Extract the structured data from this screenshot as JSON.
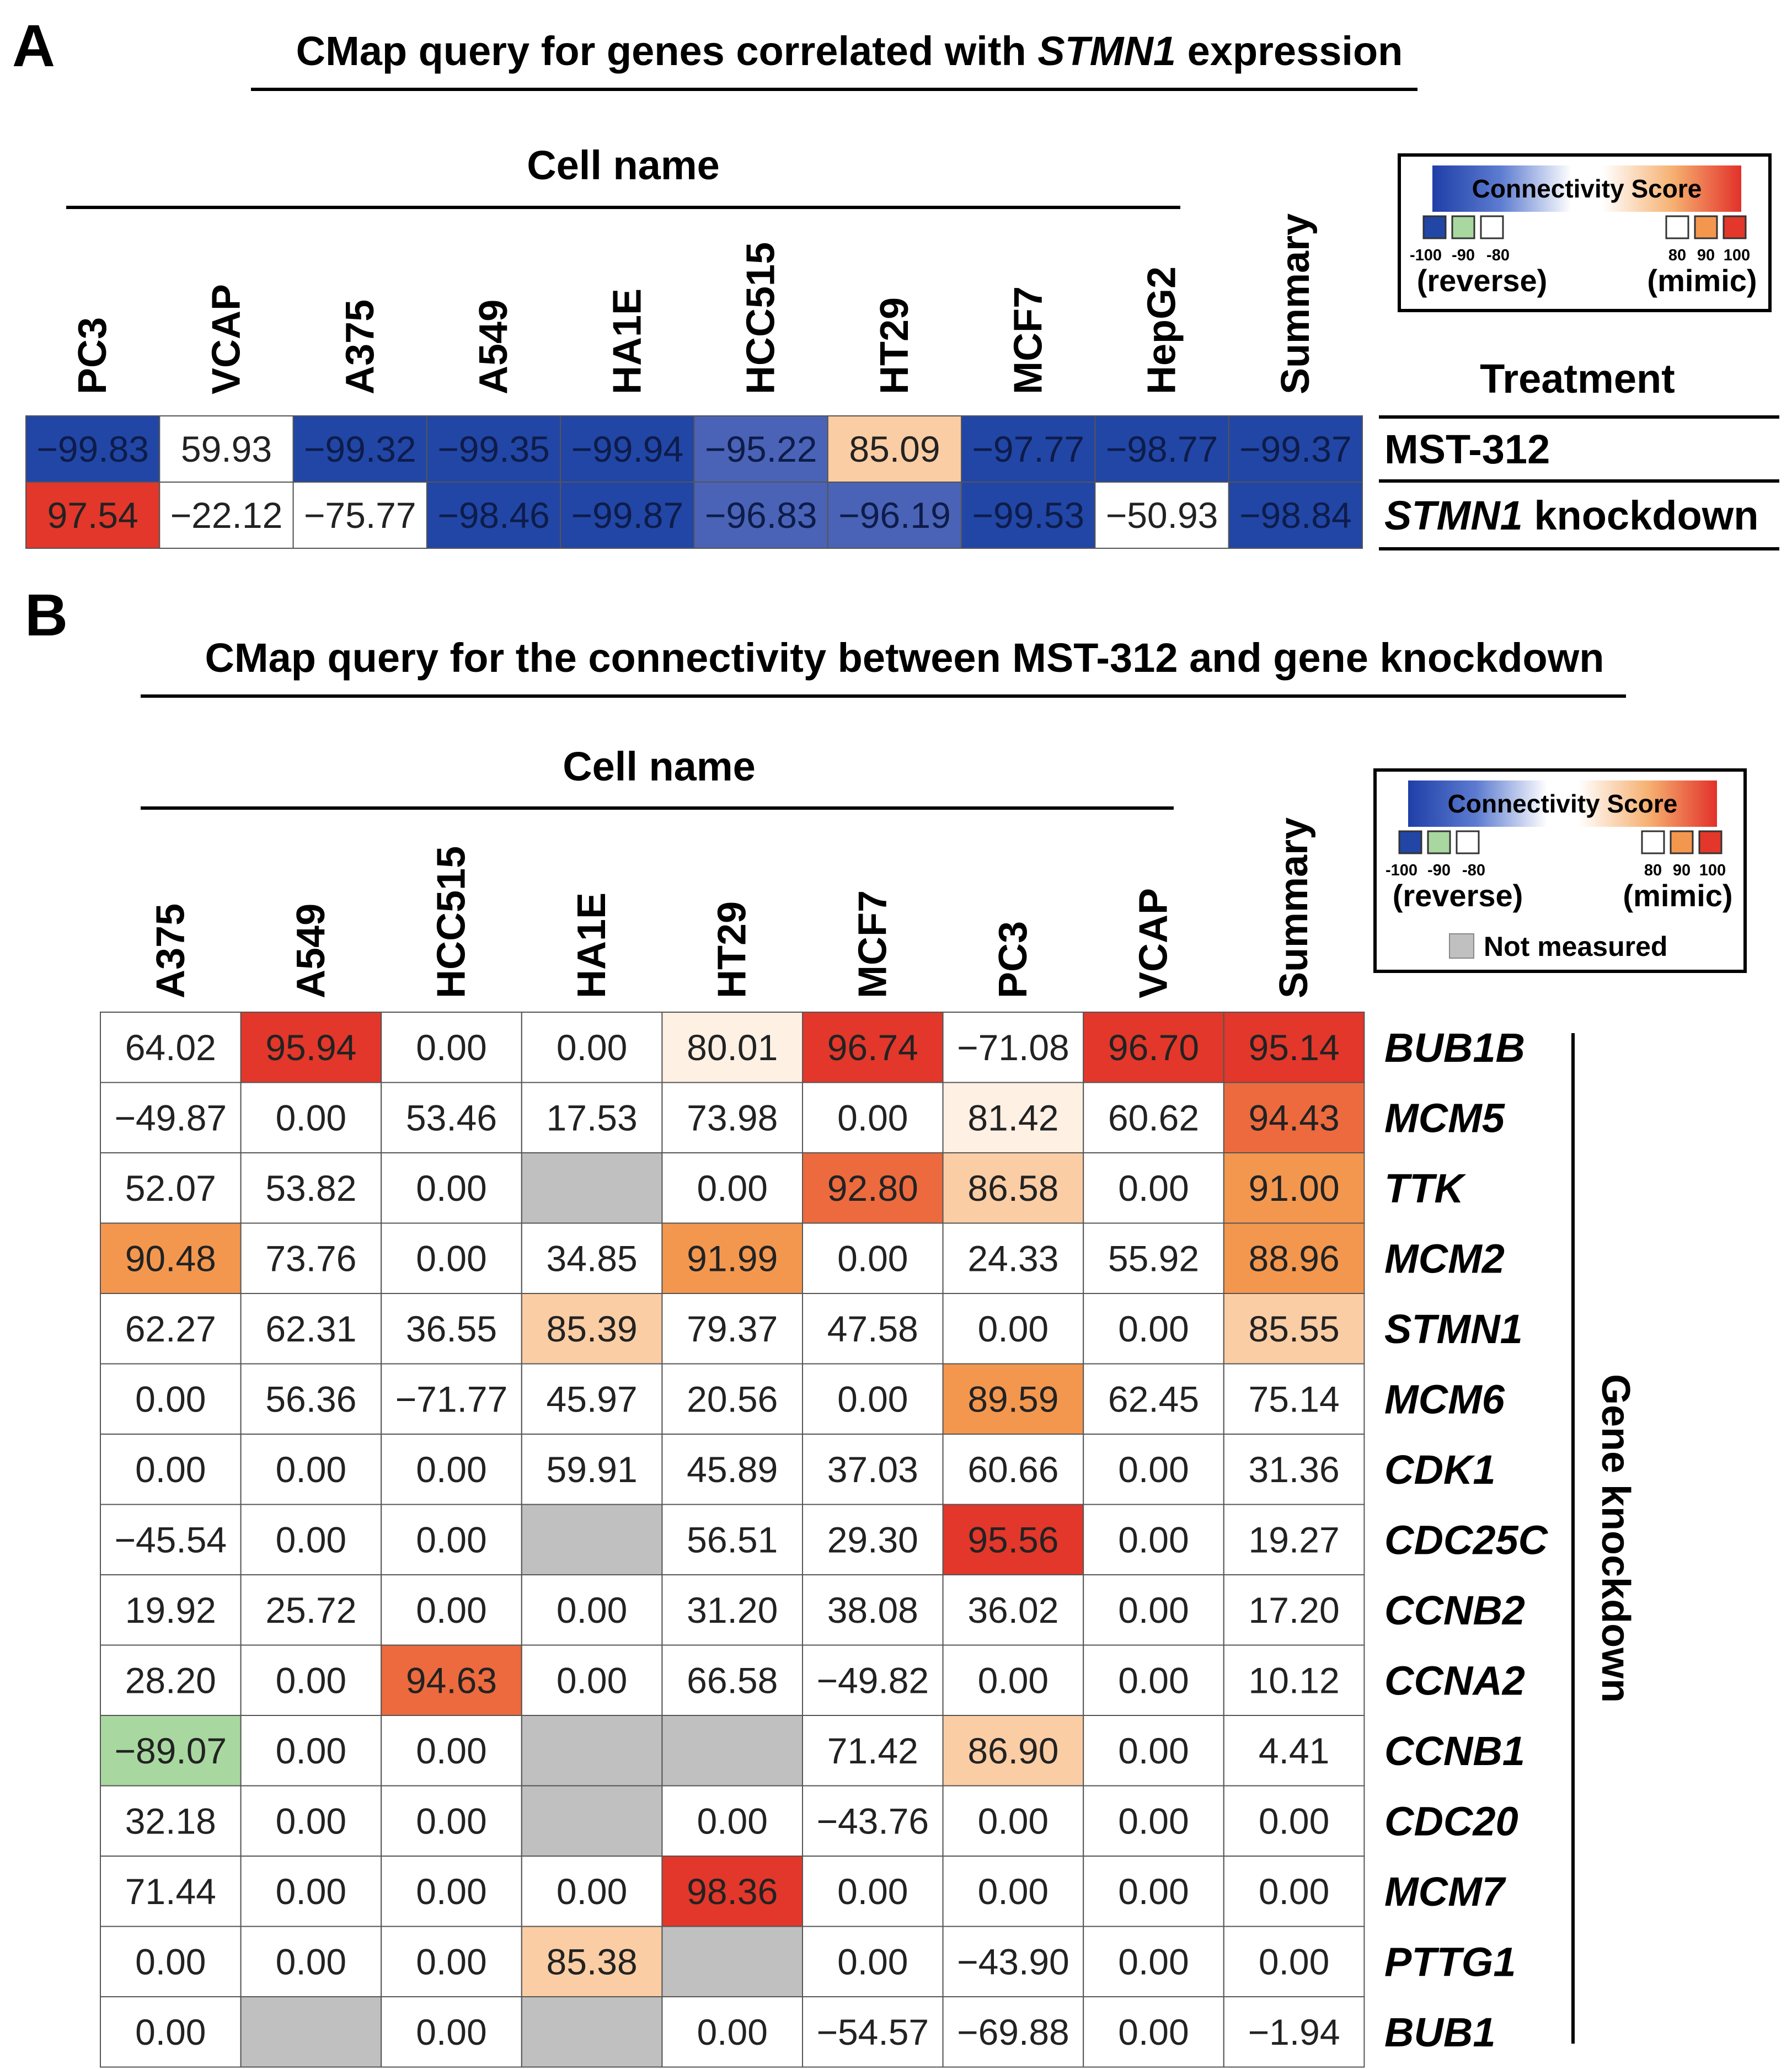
{
  "colors": {
    "strong_blue": "#2246a6",
    "mid_blue": "#4a63b6",
    "green": "#a8d8a0",
    "light_peach": "#fff0e4",
    "peach": "#fbcda4",
    "orange": "#f3974f",
    "dark_orange": "#ec6a3e",
    "red": "#e2372a",
    "grey": "#c0c0c0",
    "white": "#ffffff"
  },
  "chart_data": [
    {
      "type": "heatmap",
      "panel": "A",
      "title_parts": [
        "CMap query for genes correlated with ",
        "STMN1",
        " expression"
      ],
      "column_group_label": "Cell name",
      "columns": [
        "PC3",
        "VCAP",
        "A375",
        "A549",
        "HA1E",
        "HCC515",
        "HT29",
        "MCF7",
        "HepG2",
        "Summary"
      ],
      "row_header": "Treatment",
      "rows": [
        {
          "label": "MST-312",
          "label_suffix": "",
          "italic": false,
          "values": [
            "-99.83",
            "59.93",
            "-99.32",
            "-99.35",
            "-99.94",
            "-95.22",
            "85.09",
            "-97.77",
            "-98.77",
            "-99.37"
          ]
        },
        {
          "label": "STMN1",
          "label_suffix": " knockdown",
          "italic": true,
          "values": [
            "97.54",
            "-22.12",
            "-75.77",
            "-98.46",
            "-99.87",
            "-96.83",
            "-96.19",
            "-99.53",
            "-50.93",
            "-98.84"
          ]
        }
      ],
      "legend": {
        "title": "Connectivity Score",
        "left_ticks": [
          "-100",
          "-90",
          "-80"
        ],
        "right_ticks": [
          "80",
          "90",
          "100"
        ],
        "left_label": "(reverse)",
        "right_label": "(mimic)"
      }
    },
    {
      "type": "heatmap",
      "panel": "B",
      "title": "CMap query for the connectivity between MST-312 and gene knockdown",
      "column_group_label": "Cell name",
      "columns": [
        "A375",
        "A549",
        "HCC515",
        "HA1E",
        "HT29",
        "MCF7",
        "PC3",
        "VCAP",
        "Summary"
      ],
      "side_label": "Gene knockdown",
      "rows": [
        {
          "label": "BUB1B",
          "values": [
            "64.02",
            "95.94",
            "0.00",
            "0.00",
            "80.01",
            "96.74",
            "-71.08",
            "96.70",
            "95.14"
          ]
        },
        {
          "label": "MCM5",
          "values": [
            "-49.87",
            "0.00",
            "53.46",
            "17.53",
            "73.98",
            "0.00",
            "81.42",
            "60.62",
            "94.43"
          ]
        },
        {
          "label": "TTK",
          "values": [
            "52.07",
            "53.82",
            "0.00",
            null,
            "0.00",
            "92.80",
            "86.58",
            "0.00",
            "91.00"
          ]
        },
        {
          "label": "MCM2",
          "values": [
            "90.48",
            "73.76",
            "0.00",
            "34.85",
            "91.99",
            "0.00",
            "24.33",
            "55.92",
            "88.96"
          ]
        },
        {
          "label": "STMN1",
          "values": [
            "62.27",
            "62.31",
            "36.55",
            "85.39",
            "79.37",
            "47.58",
            "0.00",
            "0.00",
            "85.55"
          ]
        },
        {
          "label": "MCM6",
          "values": [
            "0.00",
            "56.36",
            "-71.77",
            "45.97",
            "20.56",
            "0.00",
            "89.59",
            "62.45",
            "75.14"
          ]
        },
        {
          "label": "CDK1",
          "values": [
            "0.00",
            "0.00",
            "0.00",
            "59.91",
            "45.89",
            "37.03",
            "60.66",
            "0.00",
            "31.36"
          ]
        },
        {
          "label": "CDC25C",
          "values": [
            "-45.54",
            "0.00",
            "0.00",
            null,
            "56.51",
            "29.30",
            "95.56",
            "0.00",
            "19.27"
          ]
        },
        {
          "label": "CCNB2",
          "values": [
            "19.92",
            "25.72",
            "0.00",
            "0.00",
            "31.20",
            "38.08",
            "36.02",
            "0.00",
            "17.20"
          ]
        },
        {
          "label": "CCNA2",
          "values": [
            "28.20",
            "0.00",
            "94.63",
            "0.00",
            "66.58",
            "-49.82",
            "0.00",
            "0.00",
            "10.12"
          ]
        },
        {
          "label": "CCNB1",
          "values": [
            "-89.07",
            "0.00",
            "0.00",
            null,
            null,
            "71.42",
            "86.90",
            "0.00",
            "4.41"
          ]
        },
        {
          "label": "CDC20",
          "values": [
            "32.18",
            "0.00",
            "0.00",
            null,
            "0.00",
            "-43.76",
            "0.00",
            "0.00",
            "0.00"
          ]
        },
        {
          "label": "MCM7",
          "values": [
            "71.44",
            "0.00",
            "0.00",
            "0.00",
            "98.36",
            "0.00",
            "0.00",
            "0.00",
            "0.00"
          ]
        },
        {
          "label": "PTTG1",
          "values": [
            "0.00",
            "0.00",
            "0.00",
            "85.38",
            null,
            "0.00",
            "-43.90",
            "0.00",
            "0.00"
          ]
        },
        {
          "label": "BUB1",
          "values": [
            "0.00",
            null,
            "0.00",
            null,
            "0.00",
            "-54.57",
            "-69.88",
            "0.00",
            "-1.94"
          ]
        }
      ],
      "legend": {
        "title": "Connectivity Score",
        "left_ticks": [
          "-100",
          "-90",
          "-80"
        ],
        "right_ticks": [
          "80",
          "90",
          "100"
        ],
        "left_label": "(reverse)",
        "right_label": "(mimic)",
        "not_measured_label": "Not measured"
      }
    }
  ]
}
